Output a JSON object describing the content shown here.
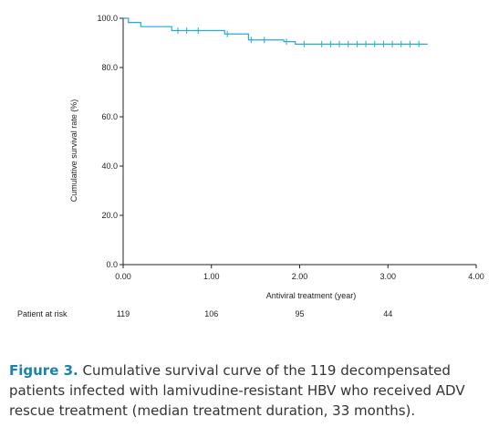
{
  "chart_data": {
    "type": "line",
    "subtype": "kaplan-meier",
    "xlabel": "Antiviral treatment (year)",
    "ylabel": "Cumulative survival rate (%)",
    "xlim": [
      0,
      4
    ],
    "ylim": [
      0,
      100
    ],
    "x_ticks": [
      "0.00",
      "1.00",
      "2.00",
      "3.00",
      "4.00"
    ],
    "y_ticks": [
      "0.0",
      "20.0",
      "40.0",
      "60.0",
      "80.0",
      "100.0"
    ],
    "color": "#29a9d6",
    "grid": false,
    "steps": [
      {
        "x": 0.0,
        "y": 100.0
      },
      {
        "x": 0.06,
        "y": 98.3
      },
      {
        "x": 0.2,
        "y": 96.6
      },
      {
        "x": 0.55,
        "y": 95.0
      },
      {
        "x": 1.15,
        "y": 93.6
      },
      {
        "x": 1.42,
        "y": 91.2
      },
      {
        "x": 1.82,
        "y": 90.5
      },
      {
        "x": 1.95,
        "y": 89.5
      },
      {
        "x": 3.45,
        "y": 89.5
      }
    ],
    "censored": [
      {
        "x": 0.62,
        "y": 95.0
      },
      {
        "x": 0.72,
        "y": 95.0
      },
      {
        "x": 0.85,
        "y": 95.0
      },
      {
        "x": 1.18,
        "y": 93.6
      },
      {
        "x": 1.45,
        "y": 91.2
      },
      {
        "x": 1.6,
        "y": 91.2
      },
      {
        "x": 1.85,
        "y": 90.5
      },
      {
        "x": 2.05,
        "y": 89.5
      },
      {
        "x": 2.25,
        "y": 89.5
      },
      {
        "x": 2.35,
        "y": 89.5
      },
      {
        "x": 2.45,
        "y": 89.5
      },
      {
        "x": 2.55,
        "y": 89.5
      },
      {
        "x": 2.65,
        "y": 89.5
      },
      {
        "x": 2.75,
        "y": 89.5
      },
      {
        "x": 2.85,
        "y": 89.5
      },
      {
        "x": 2.95,
        "y": 89.5
      },
      {
        "x": 3.05,
        "y": 89.5
      },
      {
        "x": 3.15,
        "y": 89.5
      },
      {
        "x": 3.25,
        "y": 89.5
      },
      {
        "x": 3.35,
        "y": 89.5
      }
    ],
    "risk_table": {
      "title": "Patient at risk",
      "entries": [
        {
          "x": 0.0,
          "n": "119"
        },
        {
          "x": 1.0,
          "n": "106"
        },
        {
          "x": 2.0,
          "n": "95"
        },
        {
          "x": 3.0,
          "n": "44"
        }
      ]
    }
  },
  "caption": {
    "label": "Figure 3.",
    "text": "Cumulative survival curve of the 119 decompensated patients infected with lamivudine-resistant HBV who received ADV rescue treatment (median treatment duration, 33 months)."
  }
}
